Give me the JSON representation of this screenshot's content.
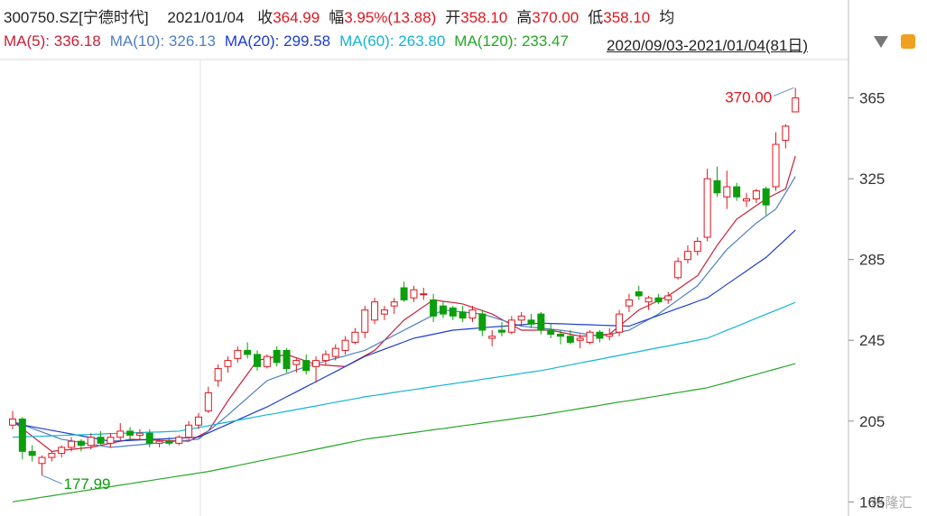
{
  "chart_data": {
    "type": "candlestick",
    "code": "300750.SZ[宁德时代]",
    "date": "2021/01/04",
    "quote": [
      {
        "label": "收",
        "value": "364.99"
      },
      {
        "label": "幅",
        "value": "3.95%(13.88)"
      },
      {
        "label": "开",
        "value": "358.10"
      },
      {
        "label": "高",
        "value": "370.00"
      },
      {
        "label": "低",
        "value": "358.10"
      },
      {
        "label": "均"
      }
    ],
    "date_range": "2020/09/03-2021/01/04(81日)",
    "up_color": "#e0161d",
    "down_color": "#0c9e0c",
    "ylim": [
      158,
      384
    ],
    "yticks": [
      165,
      205,
      245,
      285,
      325,
      365
    ],
    "max_label": "370.00",
    "min_label": "177.99",
    "watermark": "格隆汇",
    "open": [
      203,
      206,
      190,
      184,
      187,
      189,
      192,
      195,
      193,
      197,
      194,
      197,
      200,
      198,
      199,
      194,
      195,
      194,
      197,
      203,
      210,
      225,
      232,
      236,
      240,
      238,
      232,
      240,
      240,
      233,
      235,
      232,
      235,
      237,
      240,
      244,
      249,
      255,
      258,
      262,
      271,
      266,
      268,
      265,
      262,
      261,
      259,
      256,
      258,
      246,
      250,
      249,
      255,
      255,
      258,
      250,
      248,
      247,
      245,
      244,
      249,
      247,
      249,
      262,
      269,
      264,
      266,
      265,
      276,
      285,
      289,
      296,
      324,
      316,
      321,
      314,
      315,
      320,
      321,
      344,
      358.1
    ],
    "high": [
      210,
      207,
      193,
      188,
      190,
      193,
      197,
      196,
      199,
      200,
      199,
      204,
      202,
      201,
      201,
      196,
      197,
      198,
      205,
      209,
      222,
      233,
      237,
      242,
      244,
      240,
      238,
      242,
      241,
      236,
      238,
      237,
      240,
      243,
      247,
      251,
      262,
      266,
      262,
      266,
      274,
      272,
      271,
      268,
      264,
      262,
      262,
      262,
      260,
      250,
      254,
      257,
      259,
      258,
      259,
      253,
      250,
      250,
      248,
      250,
      250,
      251,
      260,
      268,
      272,
      267,
      268,
      269,
      286,
      292,
      296,
      330,
      331,
      329,
      323,
      318,
      320,
      321,
      348,
      352,
      370
    ],
    "low": [
      201,
      186,
      185,
      177.99,
      185,
      187,
      190,
      190,
      191,
      193,
      192,
      195,
      196,
      196,
      192,
      192,
      193,
      193,
      196,
      201,
      209,
      222,
      229,
      234,
      236,
      230,
      231,
      232,
      229,
      229,
      228,
      224,
      233,
      235,
      238,
      243,
      246,
      253,
      255,
      258,
      264,
      264,
      265,
      254,
      256,
      255,
      254,
      254,
      247,
      242,
      247,
      248,
      252,
      251,
      248,
      246,
      243,
      243,
      241,
      243,
      244,
      245,
      247,
      259,
      265,
      260,
      263,
      263,
      275,
      283,
      287,
      294,
      316,
      310,
      314,
      311,
      313,
      307,
      319,
      340,
      358.1
    ],
    "close": [
      206,
      190,
      188,
      187,
      189,
      192,
      195,
      193,
      197,
      194,
      197,
      200,
      198,
      199,
      194,
      195,
      194,
      197,
      203,
      207,
      219,
      231,
      235,
      240,
      238,
      232,
      237,
      234,
      231,
      235,
      230,
      235,
      238,
      241,
      245,
      249,
      260,
      264,
      260,
      264,
      265,
      270,
      268,
      257,
      258,
      257,
      256,
      260,
      250,
      247,
      249,
      255,
      257,
      253,
      250,
      248,
      247,
      244,
      246,
      249,
      246,
      248,
      258,
      265,
      267,
      266,
      264,
      267,
      284,
      289,
      294,
      325,
      318,
      321,
      316,
      315,
      319,
      312,
      342,
      351,
      364.99
    ],
    "series": [
      {
        "name": "MA(5)",
        "color": "#c8203a",
        "legend_value": "336.18",
        "values": [
          205,
          201.3,
          197.5,
          193.8,
          190,
          190.5,
          191,
          191.5,
          192,
          193,
          194,
          195,
          196,
          195.8,
          195.7,
          195.5,
          195.3,
          195.2,
          195,
          197.5,
          200,
          207.5,
          215,
          221.7,
          228.3,
          235,
          236,
          237,
          238,
          236.3,
          234.7,
          233,
          232.7,
          232.3,
          232,
          234.7,
          237.3,
          240,
          245,
          250,
          255,
          258.3,
          261.7,
          265,
          264.3,
          263.7,
          263,
          261.3,
          259.7,
          258,
          255.3,
          252.7,
          250,
          250,
          250,
          250,
          249,
          248,
          247,
          247.3,
          247.7,
          248,
          252,
          256,
          260,
          262.3,
          264.7,
          267,
          270.3,
          273.7,
          277,
          284.5,
          292,
          298.5,
          305,
          308.3,
          311.7,
          315,
          317.5,
          320,
          336.18
        ]
      },
      {
        "name": "MA(10)",
        "color": "#4e7fc2",
        "legend_value": "326.13",
        "values": [
          205,
          203.2,
          201.4,
          199.6,
          197.8,
          196,
          195.2,
          194.4,
          193.6,
          192.8,
          192,
          192.4,
          192.9,
          193.3,
          193.8,
          194.2,
          194.7,
          195.1,
          195.6,
          196,
          200,
          204,
          208,
          212.3,
          216.5,
          220.8,
          225,
          226.8,
          228.5,
          230.3,
          232,
          233.3,
          234.7,
          236,
          237.3,
          238.7,
          240,
          242.5,
          245,
          247.5,
          250,
          252.5,
          255,
          257.5,
          260,
          259.5,
          259,
          258.5,
          258,
          256.5,
          255,
          253.5,
          252,
          251.5,
          251,
          250.5,
          250,
          249.3,
          248.5,
          247.8,
          247,
          248,
          249,
          250,
          252.7,
          255.3,
          258,
          261.5,
          265,
          268.5,
          272,
          278,
          284,
          290,
          294.3,
          298.7,
          303,
          306.5,
          310,
          318,
          326.13
        ]
      },
      {
        "name": "MA(20)",
        "color": "#1c3ccf",
        "legend_value": "299.58",
        "values": [
          204,
          203.1,
          202.2,
          201.3,
          200.4,
          199.5,
          198.6,
          197.7,
          196.8,
          195.9,
          195,
          195.2,
          195.4,
          195.7,
          195.9,
          196.1,
          196.3,
          196.6,
          196.8,
          197,
          199.1,
          201.3,
          203.4,
          205.6,
          207.7,
          209.9,
          212,
          214.5,
          217,
          219.5,
          222,
          224.5,
          227,
          229.5,
          232,
          234.5,
          237,
          238.8,
          240.6,
          242.4,
          244.2,
          246,
          247,
          248,
          249,
          250,
          250.4,
          250.8,
          251.2,
          251.6,
          251.9,
          252.3,
          252.7,
          253.1,
          253.5,
          253.3,
          253.2,
          253,
          252.8,
          252.7,
          252.5,
          252.3,
          252.2,
          252,
          253.8,
          255.5,
          257.3,
          259,
          260.8,
          262.5,
          264.3,
          266,
          269.3,
          272.7,
          276,
          279.3,
          282.7,
          286,
          290.5,
          295,
          299.58
        ]
      },
      {
        "name": "MA(60)",
        "color": "#14b4d4",
        "legend_value": "263.80",
        "values": [
          197,
          197.2,
          197.4,
          197.5,
          197.7,
          197.9,
          198.1,
          198.2,
          198.4,
          198.6,
          198.8,
          198.9,
          199.1,
          199.3,
          199.5,
          199.6,
          199.8,
          200,
          200.9,
          201.8,
          202.7,
          203.6,
          204.5,
          205.4,
          206.3,
          207.2,
          208.1,
          208.9,
          209.8,
          210.7,
          211.6,
          212.5,
          213.4,
          214.3,
          215.2,
          216.1,
          217,
          217.7,
          218.4,
          219.2,
          219.9,
          220.6,
          221.3,
          222.1,
          222.8,
          223.5,
          224.2,
          224.9,
          225.7,
          226.4,
          227.1,
          227.8,
          228.6,
          229.3,
          230,
          230.9,
          231.9,
          232.8,
          233.8,
          234.7,
          235.6,
          236.6,
          237.5,
          238.5,
          239.4,
          240.4,
          241.3,
          242.2,
          243.2,
          244.1,
          245.1,
          246,
          248,
          250,
          251.9,
          253.9,
          255.9,
          257.9,
          259.8,
          261.8,
          263.8
        ]
      },
      {
        "name": "MA(120)",
        "color": "#27a527",
        "legend_value": "233.47",
        "values": [
          165,
          165.8,
          166.5,
          167.3,
          168,
          168.8,
          169.5,
          170.3,
          171,
          171.8,
          172.5,
          173.3,
          174,
          174.8,
          175.5,
          176.3,
          177,
          177.8,
          178.5,
          179.3,
          180,
          181,
          182,
          183,
          184,
          185,
          186,
          187,
          188,
          189,
          190,
          191,
          192,
          193,
          194,
          195,
          196,
          196.7,
          197.3,
          198,
          198.7,
          199.3,
          200,
          200.7,
          201.3,
          202,
          202.7,
          203.3,
          204,
          204.7,
          205.3,
          206,
          206.7,
          207.3,
          208,
          208.8,
          209.6,
          210.4,
          211.2,
          212,
          212.8,
          213.6,
          214.4,
          215.1,
          215.9,
          216.7,
          217.5,
          218.3,
          219.1,
          219.9,
          220.7,
          221.5,
          222.8,
          224.1,
          225.5,
          226.8,
          228.1,
          229.5,
          230.8,
          232.1,
          233.47
        ]
      }
    ]
  }
}
